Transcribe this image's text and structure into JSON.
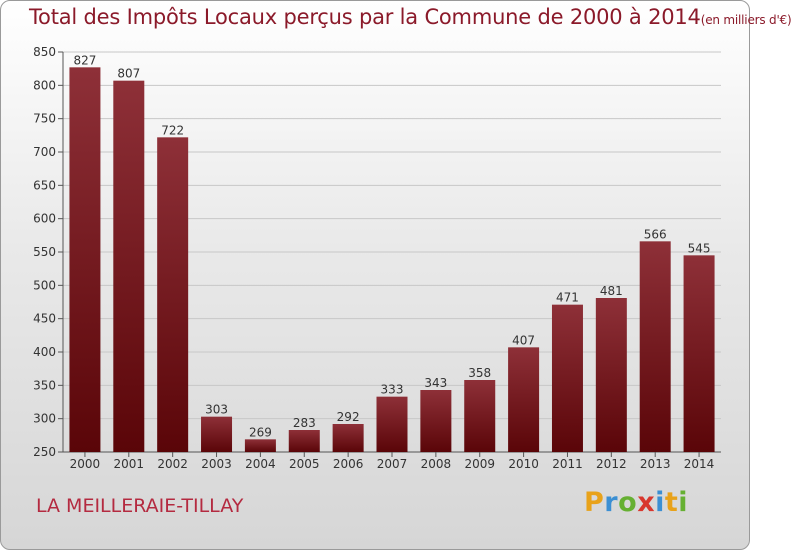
{
  "title": "Total des Impôts Locaux perçus par la Commune de 2000 à 2014",
  "title_unit": "(en milliers d'€)",
  "commune_name": "LA MEILLERAIE-TILLAY",
  "logo_text": "Proxiti",
  "colors": {
    "bar_top": "#8e3038",
    "bar_bottom": "#5a0508",
    "title": "#8b1a2a",
    "commune": "#b42a40"
  },
  "chart_data": {
    "type": "bar",
    "title": "Total des Impôts Locaux perçus par la Commune de 2000 à 2014 (en milliers d'€)",
    "xlabel": "",
    "ylabel": "",
    "categories": [
      "2000",
      "2001",
      "2002",
      "2003",
      "2004",
      "2005",
      "2006",
      "2007",
      "2008",
      "2009",
      "2010",
      "2011",
      "2012",
      "2013",
      "2014"
    ],
    "values": [
      827,
      807,
      722,
      303,
      269,
      283,
      292,
      333,
      343,
      358,
      407,
      471,
      481,
      566,
      545
    ],
    "ylim": [
      250,
      850
    ],
    "yticks": [
      250,
      300,
      350,
      400,
      450,
      500,
      550,
      600,
      650,
      700,
      750,
      800,
      850
    ],
    "grid": true,
    "legend": "none"
  }
}
